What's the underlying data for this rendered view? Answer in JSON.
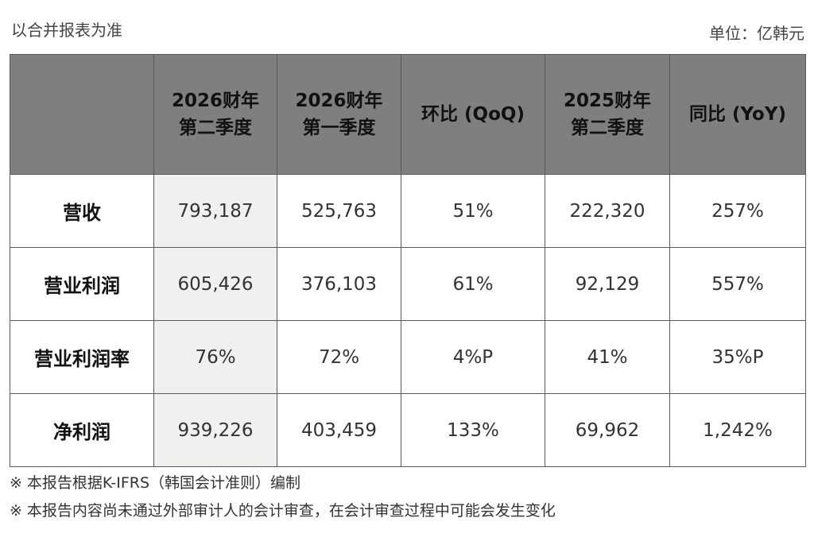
{
  "top_note": "以合并报表为准",
  "unit_note": "单位：亿韩元",
  "table": {
    "headers": [
      {
        "lines": [
          "",
          ""
        ]
      },
      {
        "lines": [
          "2026财年",
          "第二季度"
        ]
      },
      {
        "lines": [
          "2026财年",
          "第一季度"
        ]
      },
      {
        "lines": [
          "环比 (QoQ)",
          ""
        ]
      },
      {
        "lines": [
          "2025财年",
          "第二季度"
        ]
      },
      {
        "lines": [
          "同比 (YoY)",
          ""
        ]
      }
    ],
    "rows": [
      {
        "label": "营收",
        "cells": [
          "793,187",
          "525,763",
          "51%",
          "222,320",
          "257%"
        ]
      },
      {
        "label": "营业利润",
        "cells": [
          "605,426",
          "376,103",
          "61%",
          "92,129",
          "557%"
        ]
      },
      {
        "label": "营业利润率",
        "cells": [
          "76%",
          "72%",
          "4%P",
          "41%",
          "35%P"
        ]
      },
      {
        "label": "净利润",
        "cells": [
          "939,226",
          "403,459",
          "133%",
          "69,962",
          "1,242%"
        ]
      }
    ]
  },
  "footnotes": [
    {
      "mark": "※",
      "text": "本报告根据K-IFRS（韩国会计准则）编制"
    },
    {
      "mark": "※",
      "text": "本报告内容尚未通过外部审计人的会计审查，在会计审查过程中可能会发生变化"
    }
  ],
  "colors": {
    "header_bg": "#7f7f7f",
    "highlight_col_bg": "#f0f0ee",
    "border": "#5a5a5a"
  }
}
